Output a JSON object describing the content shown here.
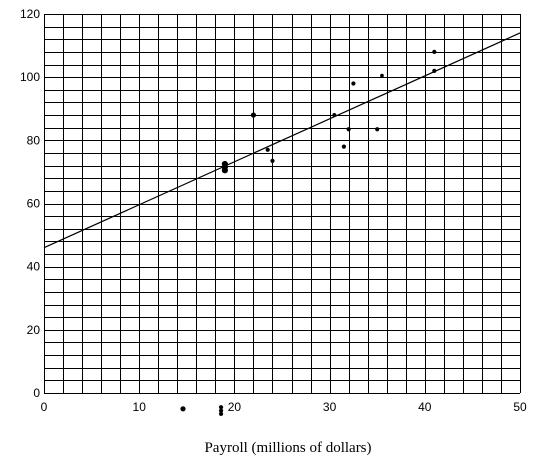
{
  "chart_data": {
    "type": "scatter",
    "title": "",
    "xlabel": "Payroll (millions of dollars)",
    "ylabel": "",
    "xlim": [
      0,
      50
    ],
    "ylim": [
      0,
      120
    ],
    "x_ticks": [
      "0",
      "10",
      "20",
      "30",
      "40",
      "50"
    ],
    "y_ticks": [
      "0",
      "20",
      "40",
      "60",
      "80",
      "100",
      "120"
    ],
    "grid": true,
    "grid_minor_step_x": 2,
    "grid_minor_step_y": 4,
    "colors": {
      "grid": "#000000",
      "points": "#000000",
      "trend_line": "#000000"
    },
    "trend_line": {
      "points": [
        [
          0,
          46
        ],
        [
          50,
          114
        ]
      ]
    },
    "points": [
      {
        "x": 14.6,
        "y": -5.0,
        "size": 4
      },
      {
        "x": 18.6,
        "y": -4.5,
        "size": 3
      },
      {
        "x": 18.6,
        "y": -5.6,
        "size": 3
      },
      {
        "x": 18.6,
        "y": -6.6,
        "size": 3
      },
      {
        "x": 19.0,
        "y": 72.5,
        "size": 5
      },
      {
        "x": 19.0,
        "y": 71.5,
        "size": 5
      },
      {
        "x": 19.0,
        "y": 70.5,
        "size": 5
      },
      {
        "x": 22.0,
        "y": 88.0,
        "size": 4
      },
      {
        "x": 23.5,
        "y": 77.0,
        "size": 3
      },
      {
        "x": 24.0,
        "y": 73.5,
        "size": 3
      },
      {
        "x": 30.5,
        "y": 88.0,
        "size": 3
      },
      {
        "x": 31.5,
        "y": 78.0,
        "size": 3
      },
      {
        "x": 32.0,
        "y": 83.5,
        "size": 3
      },
      {
        "x": 32.5,
        "y": 98.0,
        "size": 3
      },
      {
        "x": 35.0,
        "y": 83.5,
        "size": 3
      },
      {
        "x": 35.5,
        "y": 100.5,
        "size": 2.5
      },
      {
        "x": 41.0,
        "y": 102.0,
        "size": 3
      },
      {
        "x": 41.0,
        "y": 108.0,
        "size": 3
      }
    ]
  }
}
